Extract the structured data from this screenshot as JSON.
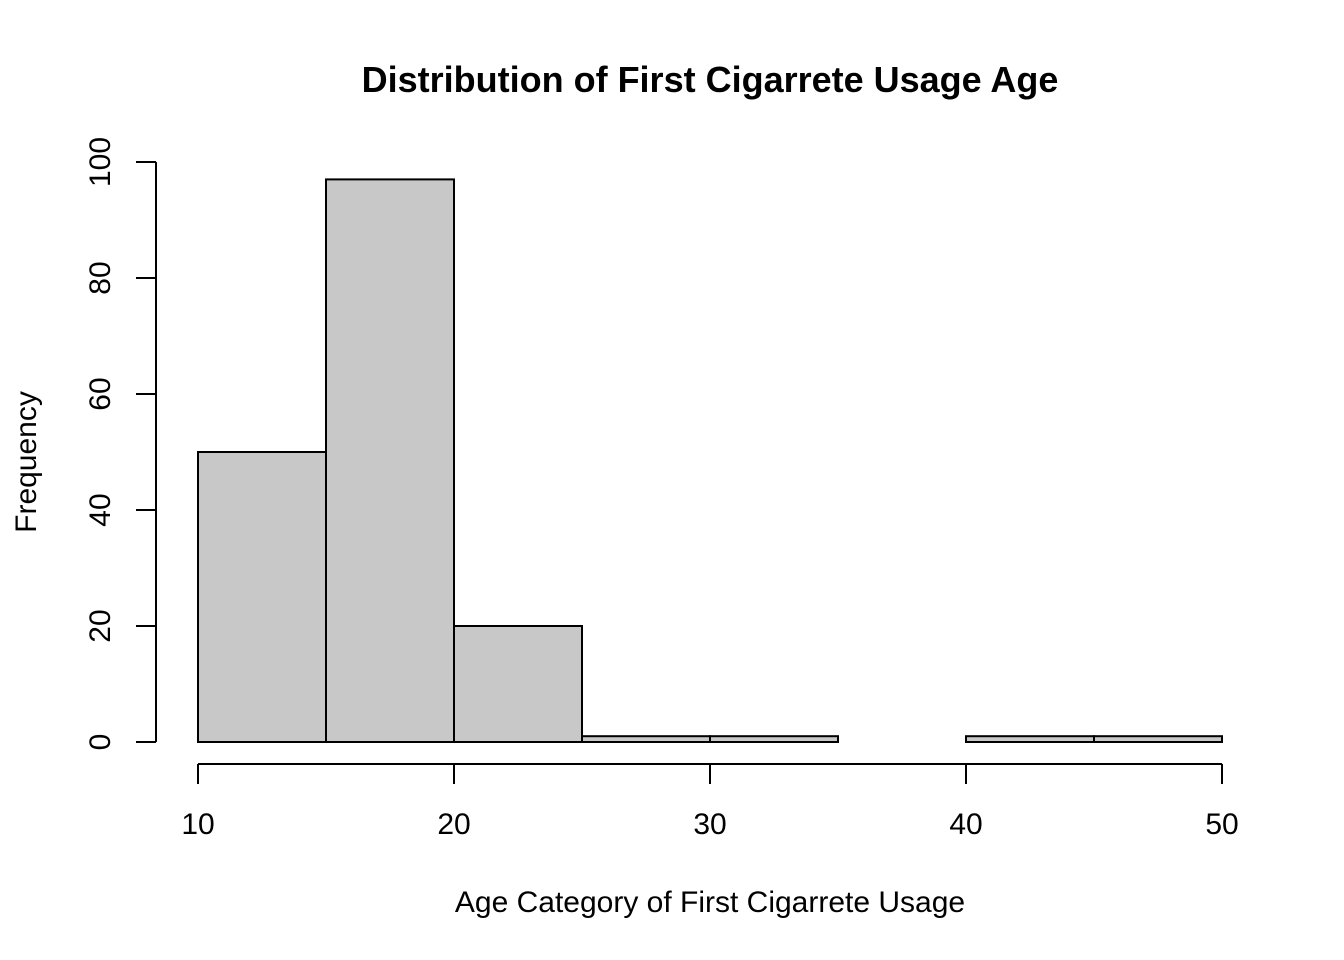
{
  "chart_data": {
    "type": "bar",
    "subtype": "histogram",
    "title": "Distribution of First Cigarrete Usage Age",
    "xlabel": "Age Category of First Cigarrete Usage",
    "ylabel": "Frequency",
    "bins": [
      {
        "start": 10,
        "end": 15,
        "count": 50
      },
      {
        "start": 15,
        "end": 20,
        "count": 97
      },
      {
        "start": 20,
        "end": 25,
        "count": 20
      },
      {
        "start": 25,
        "end": 30,
        "count": 1
      },
      {
        "start": 30,
        "end": 35,
        "count": 1
      },
      {
        "start": 35,
        "end": 40,
        "count": 0
      },
      {
        "start": 40,
        "end": 45,
        "count": 1
      },
      {
        "start": 45,
        "end": 50,
        "count": 1
      }
    ],
    "xlim": [
      10,
      50
    ],
    "ylim": [
      0,
      100
    ],
    "x_ticks": [
      "10",
      "20",
      "30",
      "40",
      "50"
    ],
    "y_ticks": [
      "0",
      "20",
      "40",
      "60",
      "80",
      "100"
    ],
    "bar_color": "#c8c8c8",
    "edge_color": "#000000",
    "grid": false,
    "legend": "none"
  }
}
